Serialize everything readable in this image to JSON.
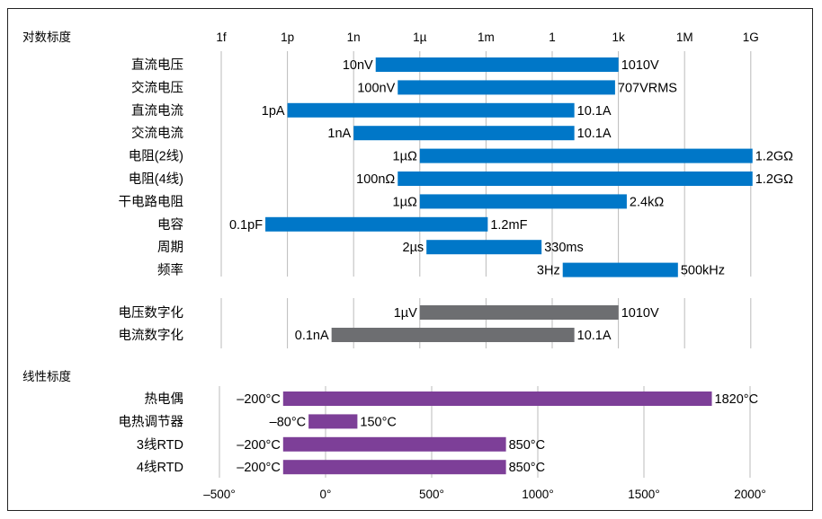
{
  "chart_data": [
    {
      "type": "bar",
      "subtype": "range-bar",
      "section_title": "对数标度",
      "scale": "log",
      "tick_labels": [
        "1f",
        "1p",
        "1n",
        "1µ",
        "1m",
        "1",
        "1k",
        "1M",
        "1G"
      ],
      "tick_values": [
        1e-15,
        1e-12,
        1e-09,
        1e-06,
        0.001,
        1,
        1000.0,
        1000000.0,
        1000000000.0
      ],
      "grid": true,
      "groups": [
        {
          "color": "#0077c8",
          "rows": [
            {
              "category": "直流电压",
              "min": 1e-08,
              "max": 1010,
              "min_label": "10nV",
              "max_label": "1010V"
            },
            {
              "category": "交流电压",
              "min": 1e-07,
              "max": 707,
              "min_label": "100nV",
              "max_label": "707VRMS"
            },
            {
              "category": "直流电流",
              "min": 1e-12,
              "max": 10.1,
              "min_label": "1pA",
              "max_label": "10.1A"
            },
            {
              "category": "交流电流",
              "min": 1e-09,
              "max": 10.1,
              "min_label": "1nA",
              "max_label": "10.1A"
            },
            {
              "category": "电阻(2线)",
              "min": 1e-06,
              "max": 1200000000.0,
              "min_label": "1µΩ",
              "max_label": "1.2GΩ"
            },
            {
              "category": "电阻(4线)",
              "min": 1e-07,
              "max": 1200000000.0,
              "min_label": "100nΩ",
              "max_label": "1.2GΩ"
            },
            {
              "category": "干电路电阻",
              "min": 1e-06,
              "max": 2400,
              "min_label": "1µΩ",
              "max_label": "2.4kΩ"
            },
            {
              "category": "电容",
              "min": 1e-13,
              "max": 0.0012,
              "min_label": "0.1pF",
              "max_label": "1.2mF"
            },
            {
              "category": "周期",
              "min": 2e-06,
              "max": 0.33,
              "min_label": "2µs",
              "max_label": "330ms"
            },
            {
              "category": "频率",
              "min": 3,
              "max": 500000,
              "min_label": "3Hz",
              "max_label": "500kHz"
            }
          ]
        },
        {
          "color": "#6d6e71",
          "rows": [
            {
              "category": "电压数字化",
              "min": 1e-06,
              "max": 1010,
              "min_label": "1µV",
              "max_label": "1010V"
            },
            {
              "category": "电流数字化",
              "min": 1e-10,
              "max": 10.1,
              "min_label": "0.1nA",
              "max_label": "10.1A"
            }
          ]
        }
      ]
    },
    {
      "type": "bar",
      "subtype": "range-bar",
      "section_title": "线性标度",
      "scale": "linear",
      "tick_labels": [
        "–500°",
        "0°",
        "500°",
        "1000°",
        "1500°",
        "2000°"
      ],
      "tick_values": [
        -500,
        0,
        500,
        1000,
        1500,
        2000
      ],
      "grid": true,
      "groups": [
        {
          "color": "#7d3f98",
          "rows": [
            {
              "category": "热电偶",
              "min": -200,
              "max": 1820,
              "min_label": "–200°C",
              "max_label": "1820°C"
            },
            {
              "category": "电热调节器",
              "min": -80,
              "max": 150,
              "min_label": "–80°C",
              "max_label": "150°C"
            },
            {
              "category": "3线RTD",
              "min": -200,
              "max": 850,
              "min_label": "–200°C",
              "max_label": "850°C"
            },
            {
              "category": "4线RTD",
              "min": -200,
              "max": 850,
              "min_label": "–200°C",
              "max_label": "850°C"
            }
          ]
        }
      ]
    }
  ]
}
